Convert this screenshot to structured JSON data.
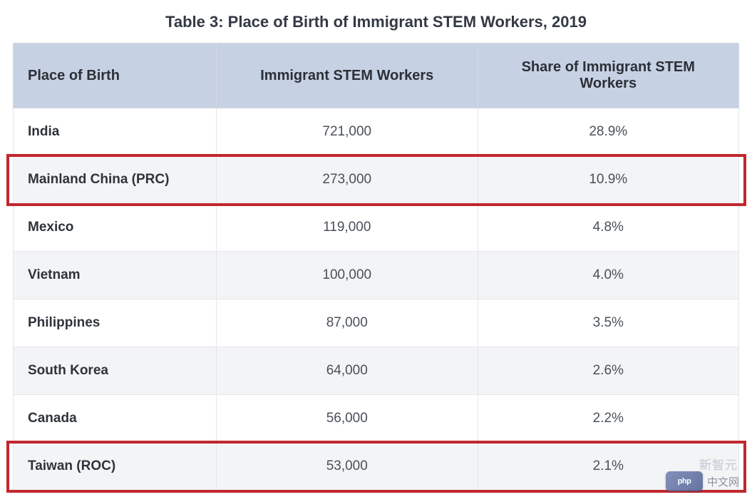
{
  "title": "Table 3: Place of Birth of Immigrant STEM Workers, 2019",
  "columns": {
    "a": "Place of Birth",
    "b": "Immigrant STEM Workers",
    "c": "Share of Immigrant STEM Workers"
  },
  "rows": [
    {
      "place": "India",
      "workers": "721,000",
      "share": "28.9%",
      "alt": false,
      "highlight": false
    },
    {
      "place": "Mainland China (PRC)",
      "workers": "273,000",
      "share": "10.9%",
      "alt": true,
      "highlight": true
    },
    {
      "place": "Mexico",
      "workers": "119,000",
      "share": "4.8%",
      "alt": false,
      "highlight": false
    },
    {
      "place": "Vietnam",
      "workers": "100,000",
      "share": "4.0%",
      "alt": true,
      "highlight": false
    },
    {
      "place": "Philippines",
      "workers": "87,000",
      "share": "3.5%",
      "alt": false,
      "highlight": false
    },
    {
      "place": "South Korea",
      "workers": "64,000",
      "share": "2.6%",
      "alt": true,
      "highlight": false
    },
    {
      "place": "Canada",
      "workers": "56,000",
      "share": "2.2%",
      "alt": false,
      "highlight": false
    },
    {
      "place": "Taiwan (ROC)",
      "workers": "53,000",
      "share": "2.1%",
      "alt": true,
      "highlight": true
    }
  ],
  "styling": {
    "header_bg": "#c6d2e4",
    "row_bg": "#ffffff",
    "row_alt_bg": "#f3f4f6",
    "border_color": "#e3e6ea",
    "highlight_border": "#c1272d",
    "highlight_border_width": 4,
    "title_color": "#333944",
    "title_fontsize": 22,
    "header_fontsize": 20,
    "cell_fontsize": 19,
    "col_widths_pct": [
      28,
      36,
      36
    ]
  },
  "watermark": {
    "logo_text": "php",
    "main_text": "中文网",
    "sub_text": "新智元"
  }
}
